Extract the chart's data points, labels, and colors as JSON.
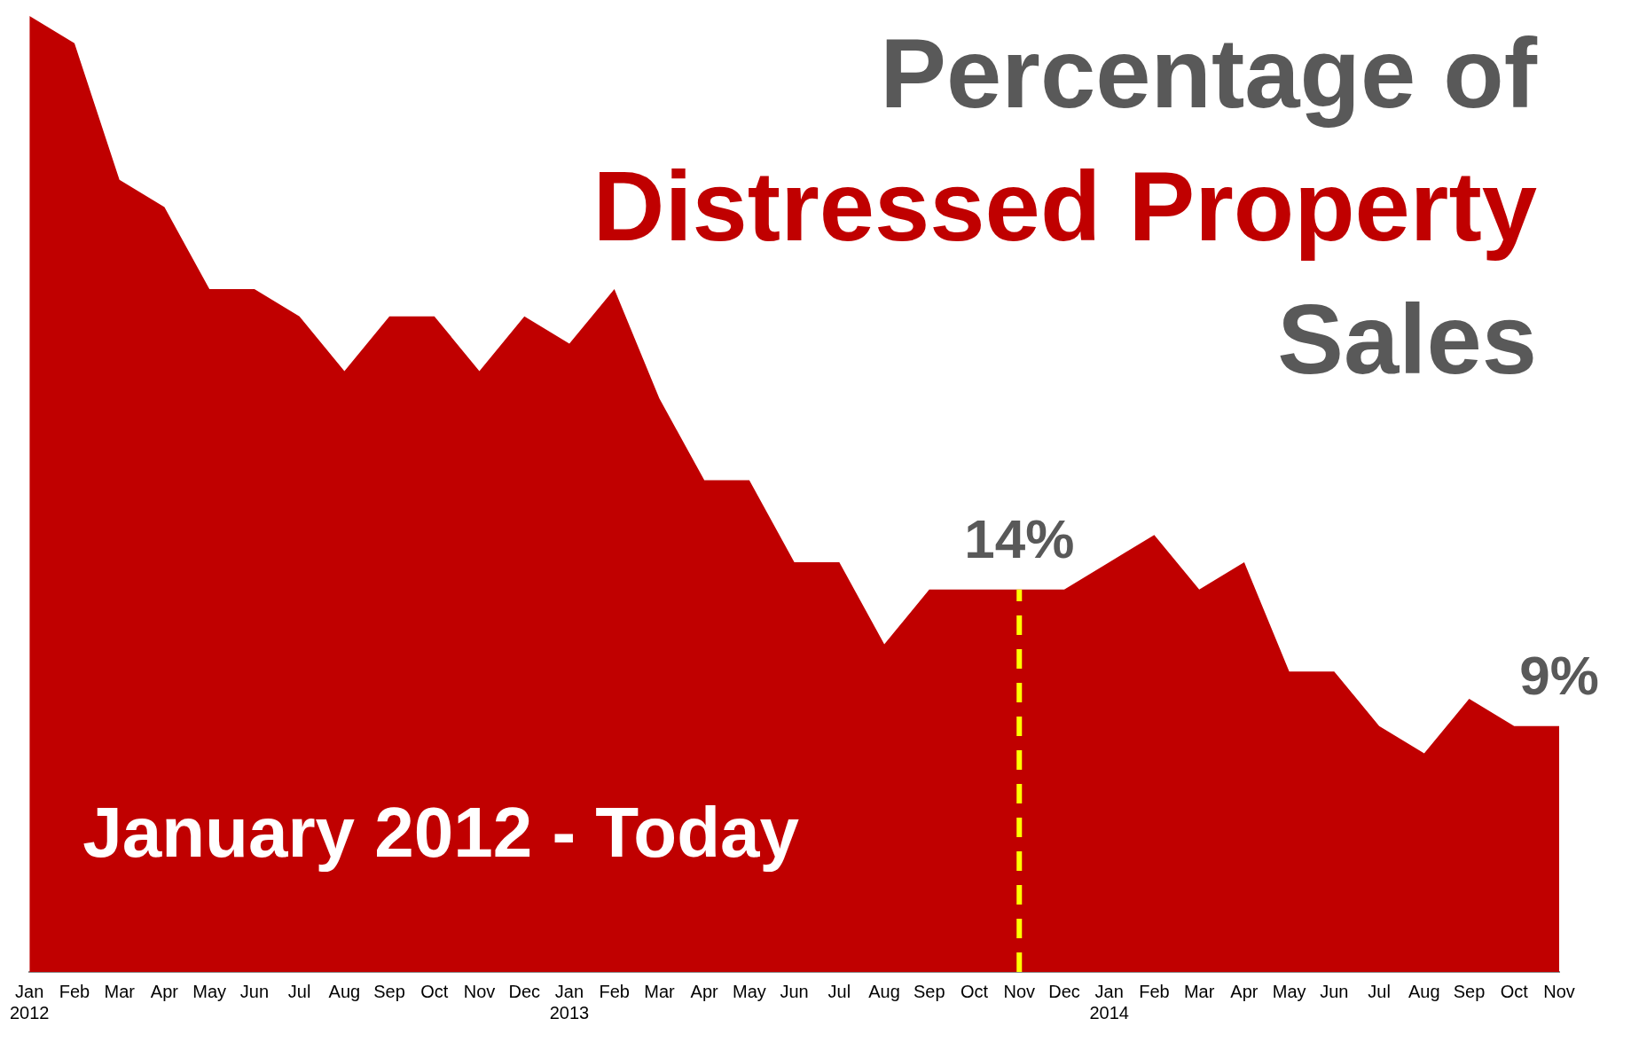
{
  "chart_data": {
    "type": "area",
    "title": "Percentage of\nDistressed Property\nSales",
    "x": [
      "2012-01",
      "2012-02",
      "2012-03",
      "2012-04",
      "2012-05",
      "2012-06",
      "2012-07",
      "2012-08",
      "2012-09",
      "2012-10",
      "2012-11",
      "2012-12",
      "2013-01",
      "2013-02",
      "2013-03",
      "2013-04",
      "2013-05",
      "2013-06",
      "2013-07",
      "2013-08",
      "2013-09",
      "2013-10",
      "2013-11",
      "2013-12",
      "2014-01",
      "2014-02",
      "2014-03",
      "2014-04",
      "2014-05",
      "2014-06",
      "2014-07",
      "2014-08",
      "2014-09",
      "2014-10",
      "2014-11"
    ],
    "xticks": [
      {
        "value": "2012-01",
        "label": "Jan\n2012"
      },
      {
        "value": "2012-02",
        "label": "Feb"
      },
      {
        "value": "2012-03",
        "label": "Mar"
      },
      {
        "value": "2012-04",
        "label": "Apr"
      },
      {
        "value": "2012-05",
        "label": "May"
      },
      {
        "value": "2012-06",
        "label": "Jun"
      },
      {
        "value": "2012-07",
        "label": "Jul"
      },
      {
        "value": "2012-08",
        "label": "Aug"
      },
      {
        "value": "2012-09",
        "label": "Sep"
      },
      {
        "value": "2012-10",
        "label": "Oct"
      },
      {
        "value": "2012-11",
        "label": "Nov"
      },
      {
        "value": "2012-12",
        "label": "Dec"
      },
      {
        "value": "2013-01",
        "label": "Jan\n2013"
      },
      {
        "value": "2013-02",
        "label": "Feb"
      },
      {
        "value": "2013-03",
        "label": "Mar"
      },
      {
        "value": "2013-04",
        "label": "Apr"
      },
      {
        "value": "2013-05",
        "label": "May"
      },
      {
        "value": "2013-06",
        "label": "Jun"
      },
      {
        "value": "2013-07",
        "label": "Jul"
      },
      {
        "value": "2013-08",
        "label": "Aug"
      },
      {
        "value": "2013-09",
        "label": "Sep"
      },
      {
        "value": "2013-10",
        "label": "Oct"
      },
      {
        "value": "2013-11",
        "label": "Nov"
      },
      {
        "value": "2013-12",
        "label": "Dec"
      },
      {
        "value": "2014-01",
        "label": "Jan\n2014"
      },
      {
        "value": "2014-02",
        "label": "Feb"
      },
      {
        "value": "2014-03",
        "label": "Mar"
      },
      {
        "value": "2014-04",
        "label": "Apr"
      },
      {
        "value": "2014-05",
        "label": "May"
      },
      {
        "value": "2014-06",
        "label": "Jun"
      },
      {
        "value": "2014-07",
        "label": "Jul"
      },
      {
        "value": "2014-08",
        "label": "Aug"
      },
      {
        "value": "2014-09",
        "label": "Sep"
      },
      {
        "value": "2014-10",
        "label": "Oct"
      },
      {
        "value": "2014-11",
        "label": "Nov"
      }
    ],
    "values": [
      35,
      34,
      29,
      28,
      25,
      25,
      24,
      22,
      24,
      24,
      22,
      24,
      23,
      25,
      21,
      18,
      18,
      15,
      15,
      12,
      14,
      14,
      14,
      14,
      15,
      16,
      14,
      15,
      11,
      11,
      9,
      8,
      10,
      9,
      9
    ],
    "value_labels": [
      null,
      null,
      null,
      null,
      null,
      null,
      null,
      null,
      null,
      null,
      null,
      null,
      null,
      null,
      null,
      null,
      null,
      null,
      null,
      null,
      null,
      null,
      "14%",
      null,
      null,
      null,
      null,
      null,
      null,
      null,
      null,
      null,
      null,
      null,
      "9%"
    ],
    "color": "#c00000",
    "xlim": [
      "2012-01",
      "2014-11"
    ],
    "tick_labels": "x",
    "grid": false,
    "legend": false,
    "ref_lines": [
      {
        "axis": "x",
        "value": "2013-11",
        "color": "#ffff00",
        "line_style": "dashed"
      }
    ],
    "annotations": [
      "January 2012 - Today"
    ]
  }
}
